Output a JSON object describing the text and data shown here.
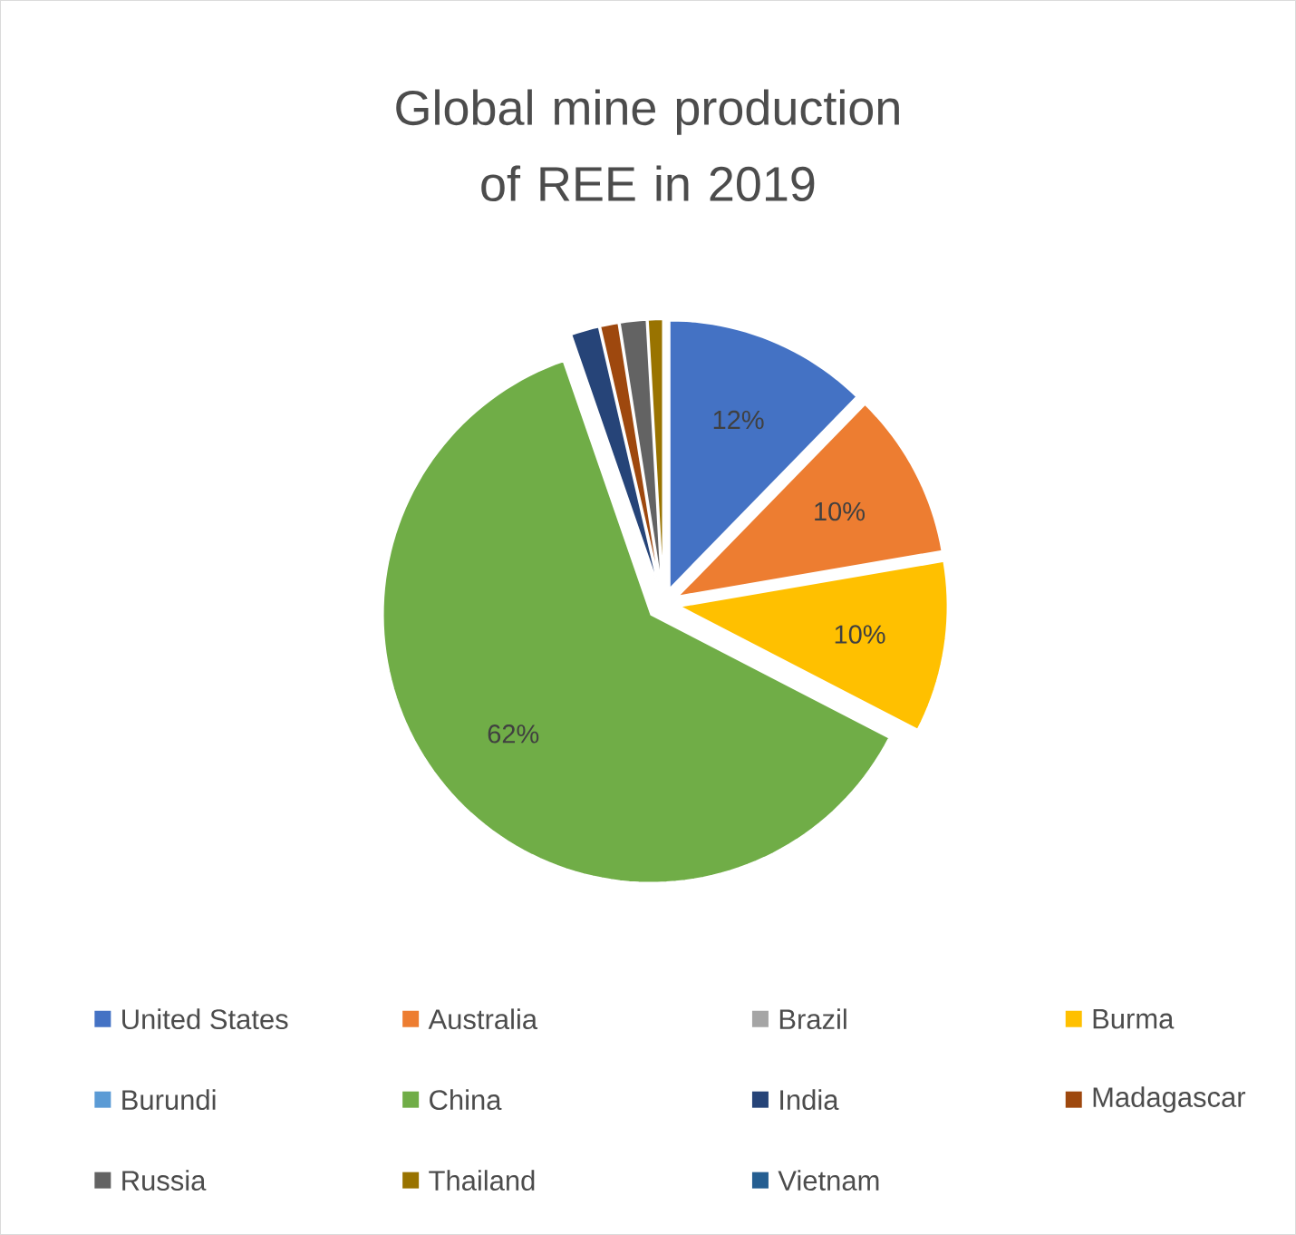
{
  "chart_data": {
    "type": "pie",
    "title": "Global mine production of REE in 2019",
    "categories": [
      "United States",
      "Australia",
      "Brazil",
      "Burma",
      "Burundi",
      "China",
      "India",
      "Madagascar",
      "Russia",
      "Thailand",
      "Vietnam"
    ],
    "values": [
      12.3,
      10.0,
      0,
      10.3,
      0,
      62.1,
      1.7,
      1.1,
      1.6,
      0.9,
      0
    ],
    "value_labels": [
      "12%",
      "10%",
      null,
      "10%",
      null,
      "62%",
      null,
      null,
      null,
      null,
      null
    ],
    "colors": [
      "#4472c4",
      "#ed7d31",
      "#a5a5a5",
      "#ffc000",
      "#5b9bd5",
      "#70ad47",
      "#264478",
      "#9e480e",
      "#636363",
      "#997300",
      "#255e91"
    ],
    "legend": "bottom"
  }
}
